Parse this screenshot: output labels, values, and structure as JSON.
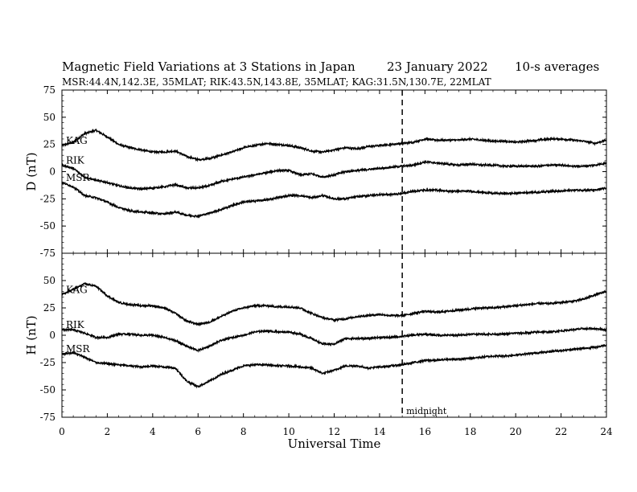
{
  "header": {
    "title": "Magnetic Field Variations at 3 Stations in Japan",
    "date": "23 January 2022",
    "averaging": "10-s averages",
    "stations": "MSR:44.4N,142.3E, 35MLAT;  RIK:43.5N,143.8E, 35MLAT;  KAG:31.5N,130.7E, 22MLAT"
  },
  "chart_data": [
    {
      "type": "line",
      "panel": "D",
      "ylabel": "D (nT)",
      "xlabel": "",
      "xlim": [
        0,
        24
      ],
      "ylim": [
        -75,
        75
      ],
      "yticks": [
        -75,
        -50,
        -25,
        0,
        25,
        50,
        75
      ],
      "x": [
        0,
        0.5,
        1,
        1.5,
        2,
        2.5,
        3,
        3.5,
        4,
        4.5,
        5,
        5.5,
        6,
        6.5,
        7,
        7.5,
        8,
        8.5,
        9,
        9.5,
        10,
        10.5,
        11,
        11.5,
        12,
        12.5,
        13,
        13.5,
        14,
        14.5,
        15,
        15.5,
        16,
        16.5,
        17,
        17.5,
        18,
        18.5,
        19,
        19.5,
        20,
        20.5,
        21,
        21.5,
        22,
        22.5,
        23,
        23.5,
        24
      ],
      "series": [
        {
          "name": "KAG",
          "values": [
            24,
            27,
            35,
            38,
            32,
            25,
            22,
            20,
            18,
            18,
            19,
            14,
            11,
            12,
            15,
            18,
            22,
            24,
            26,
            25,
            24,
            22,
            19,
            18,
            20,
            22,
            21,
            23,
            24,
            25,
            26,
            27,
            30,
            29,
            29,
            29,
            30,
            29,
            28,
            28,
            27,
            28,
            29,
            30,
            30,
            29,
            28,
            26,
            29
          ]
        },
        {
          "name": "RIK",
          "values": [
            6,
            3,
            -5,
            -8,
            -10,
            -13,
            -15,
            -16,
            -15,
            -14,
            -12,
            -15,
            -15,
            -13,
            -9,
            -7,
            -5,
            -3,
            -1,
            1,
            1,
            -3,
            -2,
            -5,
            -3,
            0,
            1,
            2,
            3,
            4,
            5,
            6,
            9,
            8,
            7,
            6,
            7,
            6,
            6,
            5,
            5,
            5,
            5,
            6,
            6,
            5,
            5,
            6,
            8
          ]
        },
        {
          "name": "MSR",
          "values": [
            -10,
            -14,
            -22,
            -24,
            -28,
            -33,
            -36,
            -37,
            -38,
            -39,
            -37,
            -40,
            -41,
            -38,
            -35,
            -31,
            -28,
            -27,
            -26,
            -24,
            -22,
            -22,
            -24,
            -22,
            -25,
            -25,
            -23,
            -22,
            -21,
            -21,
            -20,
            -18,
            -17,
            -17,
            -18,
            -18,
            -18,
            -19,
            -20,
            -20,
            -20,
            -19,
            -19,
            -18,
            -18,
            -17,
            -17,
            -17,
            -15
          ]
        }
      ]
    },
    {
      "type": "line",
      "panel": "H",
      "ylabel": "H (nT)",
      "xlabel": "Universal Time",
      "xlim": [
        0,
        24
      ],
      "ylim": [
        -75,
        75
      ],
      "yticks": [
        -75,
        -50,
        -25,
        0,
        25,
        50,
        75
      ],
      "xticks": [
        0,
        2,
        4,
        6,
        8,
        10,
        12,
        14,
        16,
        18,
        20,
        22,
        24
      ],
      "x": [
        0,
        0.5,
        1,
        1.5,
        2,
        2.5,
        3,
        3.5,
        4,
        4.5,
        5,
        5.5,
        6,
        6.5,
        7,
        7.5,
        8,
        8.5,
        9,
        9.5,
        10,
        10.5,
        11,
        11.5,
        12,
        12.5,
        13,
        13.5,
        14,
        14.5,
        15,
        15.5,
        16,
        16.5,
        17,
        17.5,
        18,
        18.5,
        19,
        19.5,
        20,
        20.5,
        21,
        21.5,
        22,
        22.5,
        23,
        23.5,
        24
      ],
      "series": [
        {
          "name": "KAG",
          "values": [
            37,
            42,
            47,
            45,
            36,
            30,
            28,
            27,
            27,
            25,
            20,
            13,
            10,
            12,
            17,
            22,
            25,
            27,
            27,
            26,
            26,
            25,
            20,
            16,
            14,
            15,
            17,
            18,
            19,
            18,
            18,
            20,
            22,
            21,
            22,
            23,
            24,
            25,
            25,
            26,
            27,
            28,
            29,
            29,
            30,
            31,
            33,
            37,
            40
          ]
        },
        {
          "name": "RIK",
          "values": [
            5,
            5,
            2,
            -2,
            -2,
            1,
            1,
            0,
            0,
            -2,
            -5,
            -10,
            -14,
            -10,
            -5,
            -2,
            0,
            3,
            4,
            3,
            3,
            1,
            -3,
            -8,
            -8,
            -3,
            -3,
            -3,
            -2,
            -2,
            -1,
            0,
            1,
            0,
            0,
            0,
            1,
            1,
            1,
            1,
            2,
            2,
            3,
            3,
            4,
            5,
            6,
            6,
            5
          ]
        },
        {
          "name": "MSR",
          "values": [
            -17,
            -16,
            -20,
            -25,
            -26,
            -27,
            -28,
            -29,
            -28,
            -29,
            -30,
            -42,
            -47,
            -42,
            -36,
            -32,
            -28,
            -27,
            -27,
            -28,
            -28,
            -29,
            -30,
            -35,
            -32,
            -28,
            -28,
            -30,
            -29,
            -28,
            -27,
            -25,
            -23,
            -23,
            -22,
            -22,
            -21,
            -20,
            -19,
            -19,
            -18,
            -17,
            -16,
            -15,
            -14,
            -13,
            -12,
            -11,
            -9
          ]
        }
      ]
    }
  ],
  "annotation": {
    "label": "midnight",
    "x": 15
  }
}
